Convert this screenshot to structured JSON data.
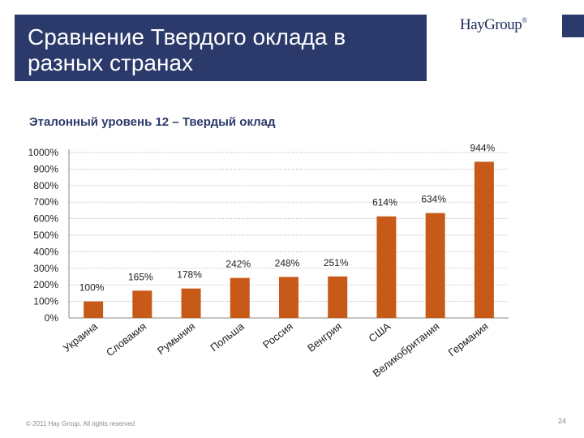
{
  "header": {
    "title": "Сравнение Твердого оклада в разных странах",
    "logo": "HayGroup",
    "logo_mark": "®"
  },
  "subtitle": "Эталонный уровень 12 – Твердый оклад",
  "footer": {
    "copyright": "© 2011 Hay Group. All rights reserved",
    "page": "24"
  },
  "colors": {
    "bar": "#c85a19",
    "header_bg": "#2b3a6b"
  },
  "chart_data": {
    "type": "bar",
    "title": "Эталонный уровень 12 – Твердый оклад",
    "categories": [
      "Украина",
      "Словакия",
      "Румыния",
      "Польша",
      "Россия",
      "Венгрия",
      "США",
      "Великобритания",
      "Германия"
    ],
    "values": [
      100,
      165,
      178,
      242,
      248,
      251,
      614,
      634,
      944
    ],
    "data_labels": [
      "100%",
      "165%",
      "178%",
      "242%",
      "248%",
      "251%",
      "614%",
      "634%",
      "944%"
    ],
    "yticks": [
      "0%",
      "100%",
      "200%",
      "300%",
      "400%",
      "500%",
      "600%",
      "700%",
      "800%",
      "900%",
      "1000%"
    ],
    "ylim": [
      0,
      1000
    ],
    "xlabel": "",
    "ylabel": "",
    "grid": true,
    "legend": "none"
  }
}
